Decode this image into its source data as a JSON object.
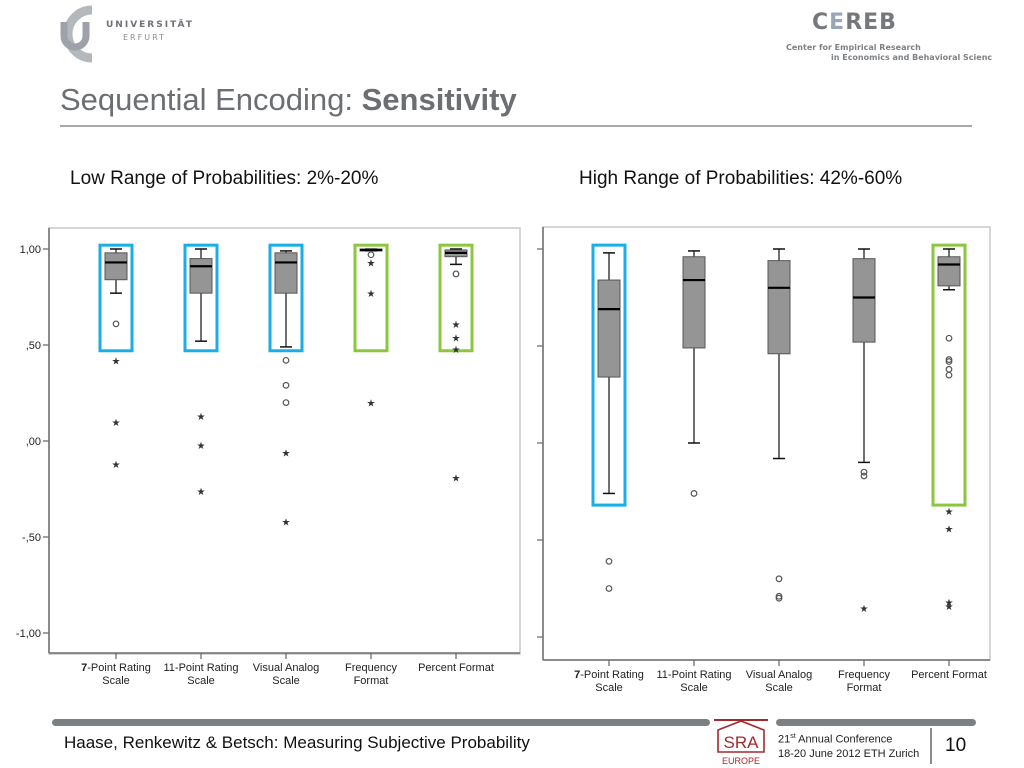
{
  "header": {
    "university_line1": "UNIVERSITÄT",
    "university_line2": "ERFURT",
    "cereb_a": "C",
    "cereb_b": "E",
    "cereb_c": "REB",
    "cereb_sub1": "Center for Empirical Research",
    "cereb_sub2": "in Economics and Behavioral Scienc"
  },
  "title": {
    "normal": "Sequential Encoding: ",
    "bold": "Sensitivity"
  },
  "subtitles": {
    "left": "Low Range of Probabilities: 2%-20%",
    "right": "High Range of Probabilities: 42%-60%"
  },
  "footer": {
    "authors": "Haase, Renkewitz & Betsch: Measuring Subjective Probability",
    "conf_ordinal": "21",
    "conf_sup": "st",
    "conf_rest": " Annual Conference",
    "conf_line2": "18-20 June 2012 ETH Zurich",
    "page_number": "10",
    "sra_text": "SRA",
    "sra_sub": "EUROPE"
  },
  "colors": {
    "box_fill": "#959595",
    "highlight_blue": "#1aaee6",
    "highlight_green": "#8cc63f",
    "axis": "#6e6e6e",
    "sra_red": "#a3292f"
  },
  "chart_data": [
    {
      "type": "box",
      "title": "Low Range of Probabilities: 2%-20%",
      "categories": [
        "7-Point Rating Scale",
        "11-Point Rating Scale",
        "Visual Analog Scale",
        "Frequency Format",
        "Percent Format"
      ],
      "category_lines": [
        [
          "7-Point Rating",
          "Scale"
        ],
        [
          "11-Point Rating",
          "Scale"
        ],
        [
          "Visual Analog",
          "Scale"
        ],
        [
          "Frequency",
          "Format"
        ],
        [
          "Percent Format",
          ""
        ]
      ],
      "ylim": [
        -1.0,
        1.0
      ],
      "yticks": [
        1.0,
        0.5,
        0.0,
        -0.5,
        -1.0
      ],
      "ytick_labels": [
        "1,00",
        ",50",
        ",00",
        "-,50",
        "-1,00"
      ],
      "show_ytick_labels": true,
      "boxes": [
        {
          "whisker_low": 0.77,
          "q1": 0.84,
          "median": 0.93,
          "q3": 0.98,
          "whisker_high": 1.0,
          "outliers": [
            0.61
          ],
          "extremes": [
            0.42,
            0.1,
            -0.12
          ],
          "highlight": "blue"
        },
        {
          "whisker_low": 0.52,
          "q1": 0.77,
          "median": 0.91,
          "q3": 0.95,
          "whisker_high": 1.0,
          "outliers": [],
          "extremes": [
            0.13,
            -0.02,
            -0.26
          ],
          "highlight": "blue"
        },
        {
          "whisker_low": 0.49,
          "q1": 0.77,
          "median": 0.93,
          "q3": 0.98,
          "whisker_high": 0.99,
          "outliers": [
            0.42,
            0.29,
            0.2
          ],
          "extremes": [
            -0.06,
            -0.42
          ],
          "highlight": "blue"
        },
        {
          "whisker_low": 0.99,
          "q1": 0.99,
          "median": 0.995,
          "q3": 1.0,
          "whisker_high": 1.0,
          "outliers": [
            0.97
          ],
          "extremes": [
            0.93,
            0.77,
            0.2
          ],
          "highlight": "green"
        },
        {
          "whisker_low": 0.92,
          "q1": 0.96,
          "median": 0.98,
          "q3": 0.995,
          "whisker_high": 1.0,
          "outliers": [
            0.87
          ],
          "extremes": [
            0.61,
            0.54,
            0.48,
            -0.19
          ],
          "highlight": "green"
        }
      ],
      "highlight_range": [
        0.47,
        1.02
      ]
    },
    {
      "type": "box",
      "title": "High Range of Probabilities: 42%-60%",
      "categories": [
        "7-Point Rating Scale",
        "11-Point Rating Scale",
        "Visual Analog Scale",
        "Frequency Format",
        "Percent Format"
      ],
      "category_lines": [
        [
          "7-Point Rating",
          "Scale"
        ],
        [
          "11-Point Rating",
          "Scale"
        ],
        [
          "Visual Analog",
          "Scale"
        ],
        [
          "Frequency",
          "Format"
        ],
        [
          "Percent Format",
          ""
        ]
      ],
      "ylim": [
        -1.0,
        1.0
      ],
      "yticks": [
        1.0,
        0.5,
        0.0,
        -0.5,
        -1.0
      ],
      "ytick_labels": [
        "",
        "",
        "",
        "",
        ""
      ],
      "show_ytick_labels": false,
      "boxes": [
        {
          "whisker_low": -0.26,
          "q1": 0.34,
          "median": 0.69,
          "q3": 0.84,
          "whisker_high": 0.98,
          "outliers": [
            -0.61,
            -0.75
          ],
          "extremes": [],
          "highlight": "blue"
        },
        {
          "whisker_low": 0.0,
          "q1": 0.49,
          "median": 0.84,
          "q3": 0.96,
          "whisker_high": 0.99,
          "outliers": [
            -0.26
          ],
          "extremes": [],
          "highlight": ""
        },
        {
          "whisker_low": -0.08,
          "q1": 0.46,
          "median": 0.8,
          "q3": 0.94,
          "whisker_high": 1.0,
          "outliers": [
            -0.7,
            -0.79,
            -0.8
          ],
          "extremes": [],
          "highlight": ""
        },
        {
          "whisker_low": -0.1,
          "q1": 0.52,
          "median": 0.75,
          "q3": 0.95,
          "whisker_high": 1.0,
          "outliers": [
            -0.15,
            -0.17
          ],
          "extremes": [
            -0.85
          ],
          "highlight": ""
        },
        {
          "whisker_low": 0.79,
          "q1": 0.81,
          "median": 0.92,
          "q3": 0.96,
          "whisker_high": 1.0,
          "outliers": [
            0.54,
            0.43,
            0.42,
            0.38,
            0.35
          ],
          "extremes": [
            -0.35,
            -0.44,
            -0.82,
            -0.84
          ],
          "highlight": "green"
        }
      ],
      "highlight_range": [
        -0.32,
        1.02
      ]
    }
  ]
}
